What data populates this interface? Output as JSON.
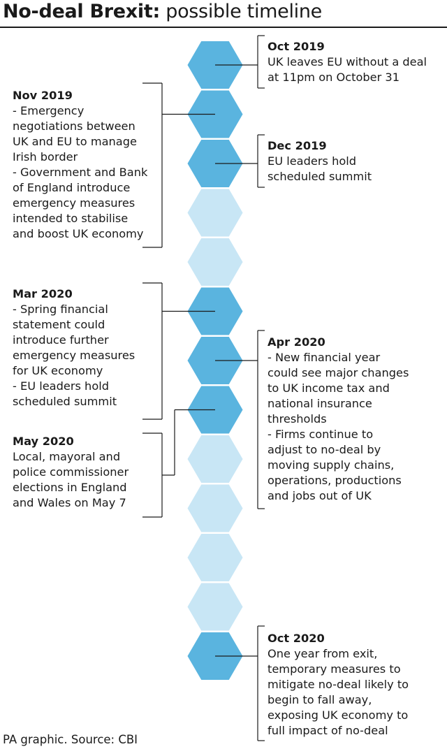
{
  "title_bold": "No-deal Brexit:",
  "title_rest": " possible timeline",
  "colors": {
    "dark": "#5ab4df",
    "light": "#c8e6f5",
    "line": "#1a1a1a",
    "text": "#1a1a1a"
  },
  "hexagons": [
    "dark",
    "dark",
    "dark",
    "light",
    "light",
    "dark",
    "dark",
    "dark",
    "light",
    "light",
    "light",
    "light",
    "dark"
  ],
  "events": [
    {
      "id": "oct-2019",
      "date": "Oct 2019",
      "lines": [
        "UK leaves EU without a deal",
        "at 11pm on October 31"
      ]
    },
    {
      "id": "nov-2019",
      "date": "Nov 2019",
      "lines": [
        "- Emergency",
        "negotiations between",
        "UK and EU to manage",
        "Irish border",
        "- Government and Bank",
        "of England introduce",
        "emergency measures",
        "intended to stabilise",
        "and boost UK economy"
      ]
    },
    {
      "id": "dec-2019",
      "date": "Dec 2019",
      "lines": [
        "EU leaders hold",
        "scheduled summit"
      ]
    },
    {
      "id": "mar-2020",
      "date": "Mar 2020",
      "lines": [
        "- Spring financial",
        "statement could",
        "introduce further",
        "emergency measures",
        "for UK economy",
        "- EU leaders hold",
        "scheduled summit"
      ]
    },
    {
      "id": "apr-2020",
      "date": "Apr 2020",
      "lines": [
        "- New financial year",
        "could see major changes",
        "to UK income tax and",
        "national insurance",
        "thresholds",
        "- Firms continue to",
        "adjust to no-deal by",
        "moving supply chains,",
        "operations, productions",
        "and jobs out of UK"
      ]
    },
    {
      "id": "may-2020",
      "date": "May 2020",
      "lines": [
        "Local, mayoral and",
        "police commissioner",
        "elections in England",
        "and Wales on May 7"
      ]
    },
    {
      "id": "oct-2020",
      "date": "Oct 2020",
      "lines": [
        "One year from exit,",
        "temporary measures to",
        "mitigate no-deal likely to",
        "begin to fall away,",
        "exposing UK economy to",
        "full impact of no-deal"
      ]
    }
  ],
  "source": "PA graphic. Source: CBI"
}
